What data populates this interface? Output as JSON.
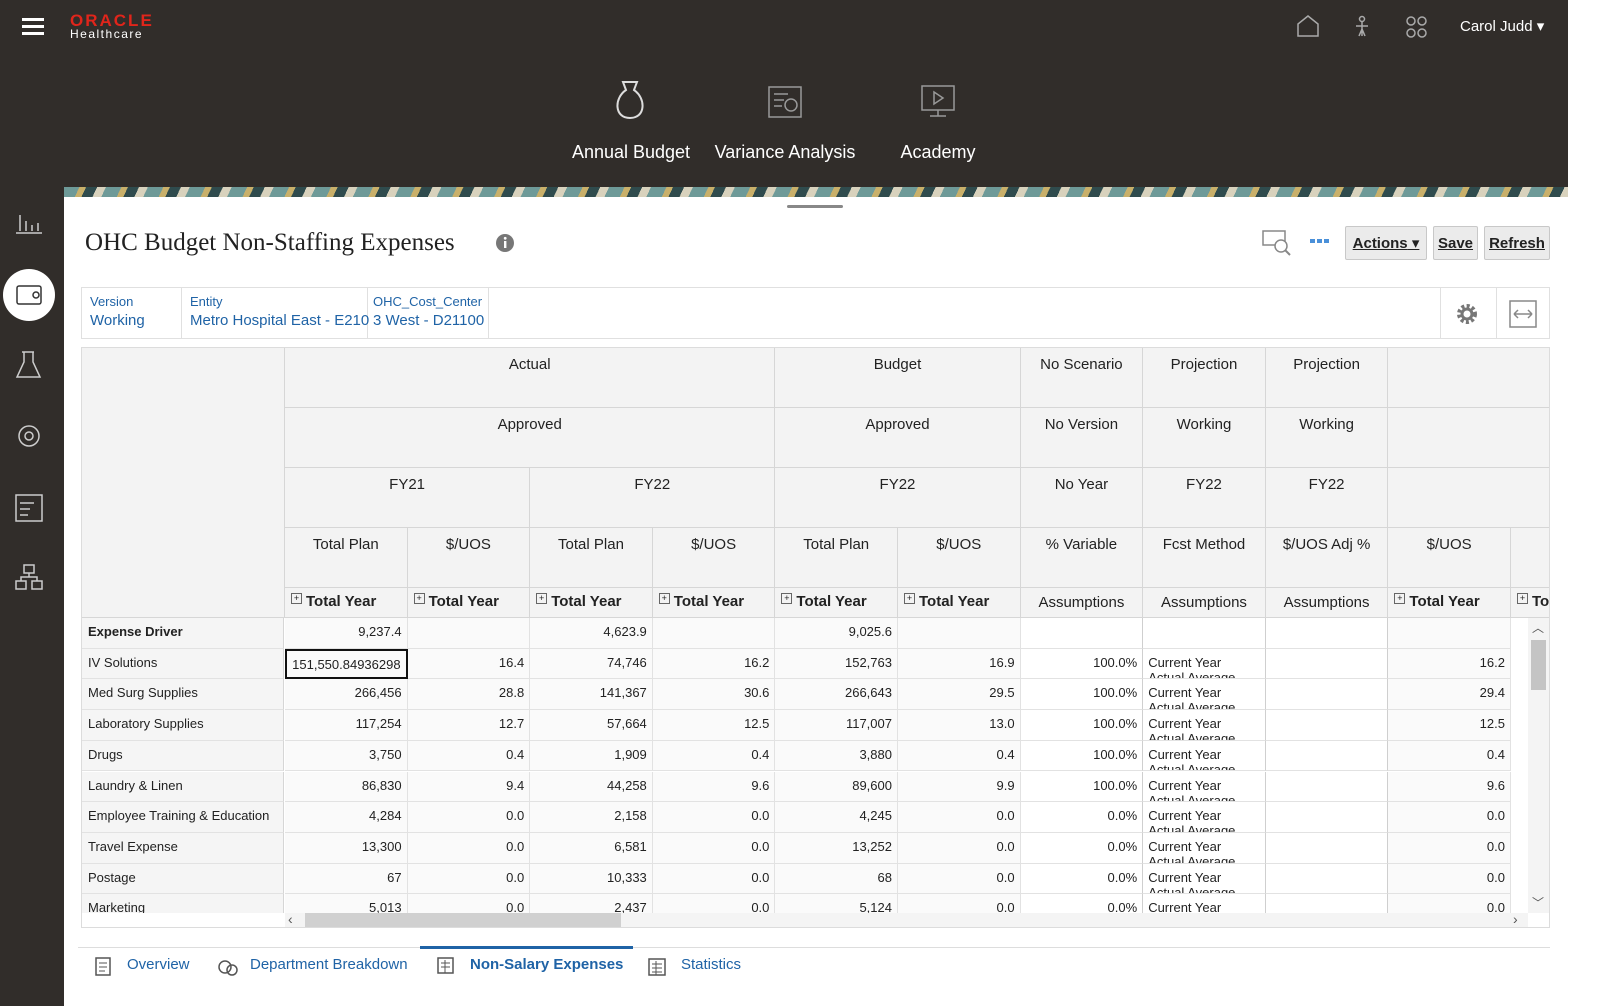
{
  "header": {
    "logo": "ORACLE",
    "sublogo": "Healthcare",
    "user": "Carol Judd"
  },
  "nav": [
    "Annual Budget",
    "Variance Analysis",
    "Academy"
  ],
  "page": {
    "title": "OHC Budget Non-Staffing Expenses",
    "actions": [
      "Actions",
      "Save",
      "Refresh"
    ]
  },
  "pov": [
    {
      "label": "Version",
      "value": "Working"
    },
    {
      "label": "Entity",
      "value": "Metro Hospital East - E210"
    },
    {
      "label": "OHC_Cost_Center",
      "value": "3 West - D21100"
    }
  ],
  "grid": {
    "header_rows": [
      [
        {
          "label": "Actual",
          "span": 4
        },
        {
          "label": "Budget",
          "span": 2
        },
        {
          "label": "No Scenario",
          "span": 1
        },
        {
          "label": "Projection",
          "span": 1
        },
        {
          "label": "Projection",
          "span": 1
        },
        {
          "label": null,
          "span": 2
        }
      ],
      [
        {
          "label": "Approved",
          "span": 4
        },
        {
          "label": "Approved",
          "span": 2
        },
        {
          "label": "No Version",
          "span": 1
        },
        {
          "label": "Working",
          "span": 1
        },
        {
          "label": "Working",
          "span": 1
        },
        {
          "label": null,
          "span": 2
        }
      ],
      [
        {
          "label": "FY21",
          "span": 2
        },
        {
          "label": "FY22",
          "span": 2
        },
        {
          "label": "FY22",
          "span": 2
        },
        {
          "label": "No Year",
          "span": 1
        },
        {
          "label": "FY22",
          "span": 1
        },
        {
          "label": "FY22",
          "span": 1
        },
        {
          "label": null,
          "span": 2
        }
      ],
      [
        {
          "label": "Total Plan",
          "span": 1
        },
        {
          "label": "$/UOS",
          "span": 1
        },
        {
          "label": "Total Plan",
          "span": 1
        },
        {
          "label": "$/UOS",
          "span": 1
        },
        {
          "label": "Total Plan",
          "span": 1
        },
        {
          "label": "$/UOS",
          "span": 1
        },
        {
          "label": "% Variable",
          "span": 1
        },
        {
          "label": "Fcst Method",
          "span": 1
        },
        {
          "label": "$/UOS Adj %",
          "span": 1
        },
        {
          "label": "$/UOS",
          "span": 1
        },
        {
          "label": "$/UOS",
          "span": 1
        }
      ],
      [
        {
          "label": "Total Year",
          "span": 1,
          "expandable": true
        },
        {
          "label": "Total Year",
          "span": 1,
          "expandable": true
        },
        {
          "label": "Total Year",
          "span": 1,
          "expandable": true
        },
        {
          "label": "Total Year",
          "span": 1,
          "expandable": true
        },
        {
          "label": "Total Year",
          "span": 1,
          "expandable": true
        },
        {
          "label": "Total Year",
          "span": 1,
          "expandable": true
        },
        {
          "label": "Assumptions",
          "span": 1,
          "expandable": false
        },
        {
          "label": "Assumptions",
          "span": 1,
          "expandable": false
        },
        {
          "label": "Assumptions",
          "span": 1,
          "expandable": false
        },
        {
          "label": "Total Year",
          "span": 1,
          "expandable": true
        },
        {
          "label": "Total Year",
          "span": 1,
          "expandable": true
        }
      ]
    ],
    "rows": [
      {
        "label": "Expense Driver",
        "emphasis": true,
        "cells": [
          "9,237.4",
          null,
          "4,623.9",
          null,
          "9,025.6",
          null,
          null,
          null,
          null,
          null
        ]
      },
      {
        "label": "IV Solutions",
        "cells": [
          "151,550.84936298",
          "16.4",
          "74,746",
          "16.2",
          "152,763",
          "16.9",
          "100.0%",
          "Current Year Actual Average",
          null,
          "16.2"
        ]
      },
      {
        "label": "Med Surg Supplies",
        "cells": [
          "266,456",
          "28.8",
          "141,367",
          "30.6",
          "266,643",
          "29.5",
          "100.0%",
          "Current Year Actual Average",
          null,
          "29.4"
        ]
      },
      {
        "label": "Laboratory Supplies",
        "cells": [
          "117,254",
          "12.7",
          "57,664",
          "12.5",
          "117,007",
          "13.0",
          "100.0%",
          "Current Year Actual Average",
          null,
          "12.5"
        ]
      },
      {
        "label": "Drugs",
        "cells": [
          "3,750",
          "0.4",
          "1,909",
          "0.4",
          "3,880",
          "0.4",
          "100.0%",
          "Current Year Actual Average",
          null,
          "0.4"
        ]
      },
      {
        "label": "Laundry & Linen",
        "cells": [
          "86,830",
          "9.4",
          "44,258",
          "9.6",
          "89,600",
          "9.9",
          "100.0%",
          "Current Year Actual Average",
          null,
          "9.6"
        ]
      },
      {
        "label": "Employee Training & Education",
        "cells": [
          "4,284",
          "0.0",
          "2,158",
          "0.0",
          "4,245",
          "0.0",
          "0.0%",
          "Current Year Actual Average",
          null,
          "0.0"
        ]
      },
      {
        "label": "Travel Expense",
        "cells": [
          "13,300",
          "0.0",
          "6,581",
          "0.0",
          "13,252",
          "0.0",
          "0.0%",
          "Current Year Actual Average",
          null,
          "0.0"
        ]
      },
      {
        "label": "Postage",
        "cells": [
          "67",
          "0.0",
          "10,333",
          "0.0",
          "68",
          "0.0",
          "0.0%",
          "Current Year Actual Average",
          null,
          "0.0"
        ]
      },
      {
        "label": "Marketing",
        "cells": [
          "5,013",
          "0.0",
          "2,437",
          "0.0",
          "5,124",
          "0.0",
          "0.0%",
          "Current Year Actual Average",
          null,
          "0.0"
        ]
      }
    ],
    "selected_cell": {
      "row": 1,
      "col": 0
    }
  },
  "tabs": [
    {
      "label": "Overview",
      "selected": false
    },
    {
      "label": "Department Breakdown",
      "selected": false
    },
    {
      "label": "Non-Salary Expenses",
      "selected": true
    },
    {
      "label": "Statistics",
      "selected": false
    }
  ]
}
